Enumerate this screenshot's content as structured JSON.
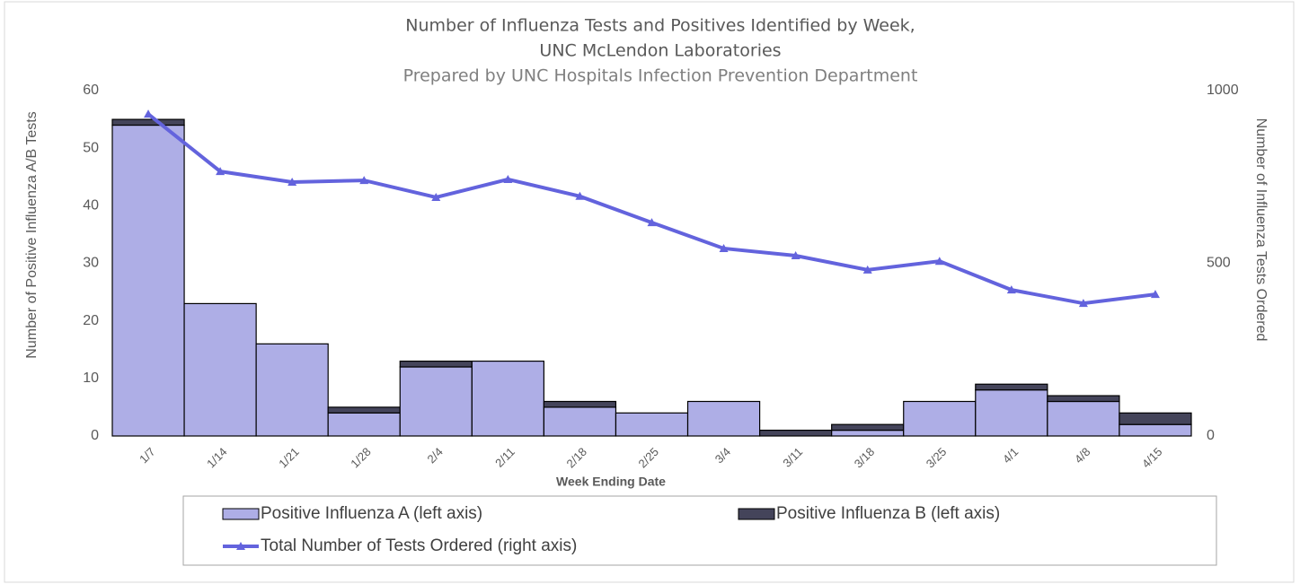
{
  "chart_data": {
    "type": "bar",
    "title": [
      "Number of Influenza Tests and Positives Identified by Week,",
      "UNC McLendon Laboratories"
    ],
    "subtitle": "Prepared by UNC Hospitals Infection Prevention Department",
    "x_label": "Week Ending Date",
    "y_label": "Number of Positive Influenza A/B Tests",
    "y2_label": "Number of Influenza Tests Ordered",
    "categories": [
      "1/7",
      "1/14",
      "1/21",
      "1/28",
      "2/4",
      "2/11",
      "2/18",
      "2/25",
      "3/4",
      "3/11",
      "3/18",
      "3/25",
      "4/1",
      "4/8",
      "4/15"
    ],
    "stacked": true,
    "series": [
      {
        "name": "Positive Influenza A (left axis)",
        "type": "bar",
        "color": "#aeaee6",
        "values": [
          54,
          23,
          16,
          4,
          12,
          13,
          5,
          4,
          6,
          0,
          1,
          6,
          8,
          6,
          2
        ]
      },
      {
        "name": "Positive Influenza B (left axis)",
        "type": "bar",
        "color": "#44445a",
        "values": [
          1,
          0,
          0,
          1,
          1,
          0,
          1,
          0,
          0,
          1,
          1,
          0,
          1,
          1,
          2
        ]
      },
      {
        "name": "Total Number of Tests Ordered (right axis)",
        "type": "line",
        "axis": "y2",
        "color": "#6363dd",
        "values": [
          932,
          766,
          735,
          740,
          691,
          743,
          694,
          618,
          543,
          522,
          481,
          506,
          423,
          384,
          410
        ]
      }
    ],
    "ylim": [
      0,
      60
    ],
    "yticks": [
      0,
      10,
      20,
      30,
      40,
      50,
      60
    ],
    "y2lim": [
      0,
      1000
    ],
    "y2ticks": [
      0,
      500,
      1000
    ]
  }
}
